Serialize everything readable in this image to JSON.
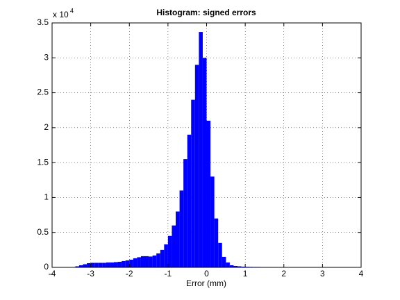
{
  "chart_data": {
    "type": "histogram",
    "title": "Histogram: signed errors",
    "xlabel": "Error (mm)",
    "y_multiplier": {
      "base": "x 10",
      "exponent": "4"
    },
    "color": "#0000ff",
    "grid": true,
    "xlim": [
      -4,
      4
    ],
    "xticks": [
      -4,
      -3,
      -2,
      -1,
      0,
      1,
      2,
      3,
      4
    ],
    "ylim": [
      0,
      35000
    ],
    "yticks": [
      0,
      {
        "value": 5000,
        "label": "0.5"
      },
      {
        "value": 10000,
        "label": "1"
      },
      {
        "value": 15000,
        "label": "1.5"
      },
      {
        "value": 20000,
        "label": "2"
      },
      {
        "value": 25000,
        "label": "2.5"
      },
      {
        "value": 30000,
        "label": "3"
      },
      {
        "value": 35000,
        "label": "3.5"
      }
    ],
    "bins": [
      -3.6,
      -3.5,
      -3.4,
      -3.3,
      -3.2,
      -3.1,
      -3.0,
      -2.9,
      -2.8,
      -2.7,
      -2.6,
      -2.5,
      -2.4,
      -2.3,
      -2.2,
      -2.1,
      -2.0,
      -1.9,
      -1.8,
      -1.7,
      -1.6,
      -1.5,
      -1.4,
      -1.3,
      -1.2,
      -1.1,
      -1.0,
      -0.9,
      -0.8,
      -0.7,
      -0.6,
      -0.5,
      -0.4,
      -0.3,
      -0.2,
      -0.1,
      0.0,
      0.1,
      0.2,
      0.3,
      0.4,
      0.5,
      0.6,
      0.7,
      0.8,
      0.9,
      1.0,
      1.1,
      1.2,
      1.3,
      1.4,
      1.5,
      1.6,
      1.7,
      1.8,
      1.9,
      2.0,
      2.1,
      2.2,
      2.3,
      2.4,
      2.5,
      2.6,
      2.7,
      2.8,
      2.9,
      3.0,
      3.1,
      3.2,
      3.3,
      3.4,
      3.5,
      3.6,
      3.7,
      3.8
    ],
    "values": [
      0,
      50,
      150,
      300,
      450,
      600,
      650,
      650,
      650,
      650,
      700,
      700,
      750,
      800,
      900,
      1000,
      1100,
      1300,
      1450,
      1600,
      1600,
      1550,
      1700,
      2000,
      2500,
      3300,
      4500,
      6000,
      8000,
      11000,
      15500,
      19000,
      24000,
      29000,
      33700,
      30000,
      21000,
      13000,
      7000,
      3500,
      1500,
      700,
      300,
      200,
      150,
      100,
      80,
      70,
      60,
      60,
      50,
      50,
      50,
      40,
      40,
      40,
      40,
      30,
      30,
      30,
      30,
      30,
      30,
      20,
      20,
      20,
      20,
      20,
      20,
      20,
      10,
      10,
      10,
      10
    ]
  }
}
